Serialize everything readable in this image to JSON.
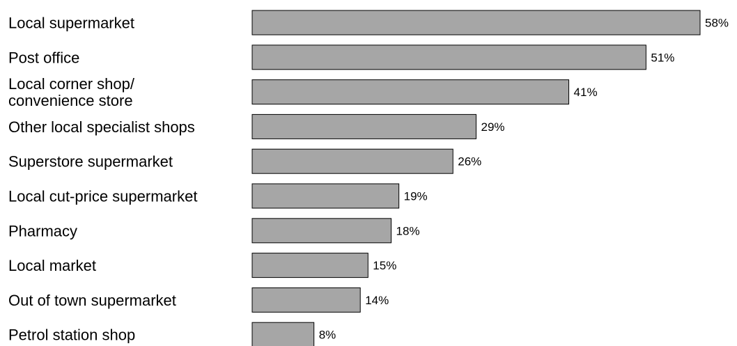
{
  "chart_data": {
    "type": "bar",
    "orientation": "horizontal",
    "title": "",
    "xlabel": "",
    "ylabel": "",
    "categories": [
      [
        "Local supermarket"
      ],
      [
        "Post office"
      ],
      [
        "Local corner shop/",
        "convenience store"
      ],
      [
        "Other local specialist shops"
      ],
      [
        "Superstore supermarket"
      ],
      [
        "Local cut-price supermarket"
      ],
      [
        "Pharmacy"
      ],
      [
        "Local market"
      ],
      [
        "Out of town supermarket"
      ],
      [
        "Petrol station shop"
      ]
    ],
    "values": [
      58,
      51,
      41,
      29,
      26,
      19,
      18,
      15,
      14,
      8
    ],
    "value_labels": [
      "58%",
      "51%",
      "41%",
      "29%",
      "26%",
      "19%",
      "18%",
      "15%",
      "14%",
      "8%"
    ],
    "xlim": [
      0,
      60
    ],
    "unit": "%",
    "grid": false,
    "legend": "none",
    "bar_color": "#a6a6a6",
    "bar_edge_color": "#000000"
  }
}
